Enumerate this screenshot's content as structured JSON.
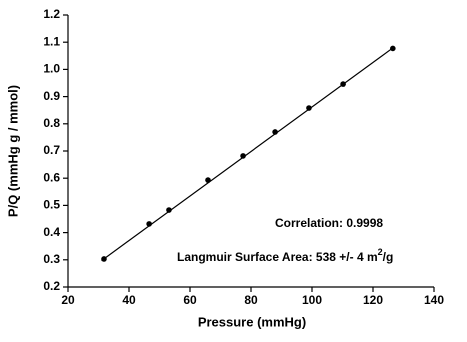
{
  "chart_data": {
    "type": "scatter",
    "x_label": "Pressure (mmHg)",
    "y_label": "P/Q (mmHg g / mmol)",
    "x": [
      31.8,
      46.6,
      53.1,
      65.9,
      77.4,
      87.9,
      99.0,
      110.2,
      126.5
    ],
    "values": [
      0.303,
      0.432,
      0.483,
      0.593,
      0.682,
      0.77,
      0.858,
      0.946,
      1.077
    ],
    "color": "#000000",
    "fit": {
      "x": [
        31,
        127
      ],
      "values": [
        0.297,
        1.083
      ]
    },
    "xlim": [
      20,
      140
    ],
    "xticks": [
      20,
      40,
      60,
      80,
      100,
      120,
      140
    ],
    "ylim": [
      0.2,
      1.2
    ],
    "yticks": [
      0.2,
      0.3,
      0.4,
      0.5,
      0.6,
      0.7,
      0.8,
      0.9,
      {
        "value": 1,
        "label": "1.0"
      },
      1.1,
      1.2
    ],
    "annotations": [
      "Correlation: 0.9998",
      "Langmuir Surface Area: 538 +/- 4 m",
      "2",
      "/g"
    ]
  }
}
